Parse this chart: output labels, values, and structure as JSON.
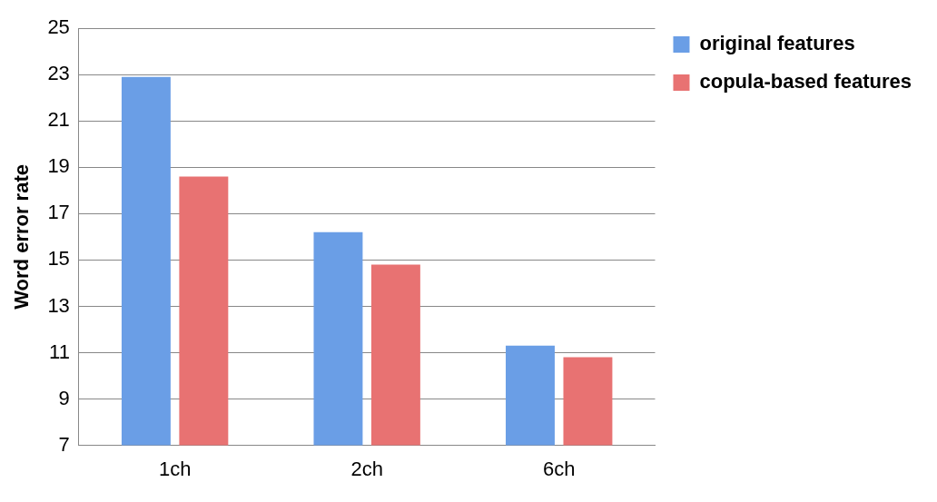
{
  "chart_data": {
    "type": "bar",
    "ylabel": "Word error rate",
    "categories": [
      "1ch",
      "2ch",
      "6ch"
    ],
    "series": [
      {
        "name": "original features",
        "color": "#6a9ee6",
        "values": [
          22.9,
          16.2,
          11.3
        ]
      },
      {
        "name": "copula-based features",
        "color": "#e87272",
        "values": [
          18.6,
          14.8,
          10.8
        ]
      }
    ],
    "ylim": [
      7,
      25
    ],
    "yticks": [
      7,
      9,
      11,
      13,
      15,
      17,
      19,
      21,
      23,
      25
    ],
    "grid": "y",
    "legend": "top right"
  }
}
